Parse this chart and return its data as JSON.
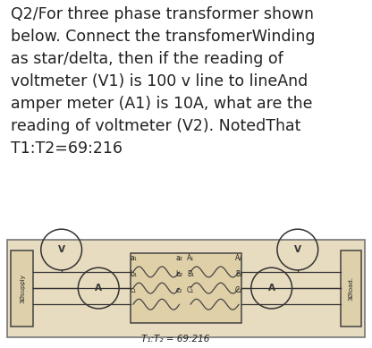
{
  "title_text": "Q2/For three phase transformer shown\nbelow. Connect the transfomerWinding\nas star/delta, then if the reading of\nvoltmeter (V1) is 100 v line to lineAnd\namper meter (A1) is 10A, what are the\nreading of voltmeter (V2). NotedThat\nT1:T2=69:216",
  "title_fontsize": 12.5,
  "title_color": "#222222",
  "bg_color": "#ffffff",
  "diagram_bg": "#e8dcc0",
  "diagram_border": "#888888",
  "label_supply": "3Øsupply",
  "label_load": "3Øload.",
  "label_ratio": "T₁:T₂ = 69:216"
}
